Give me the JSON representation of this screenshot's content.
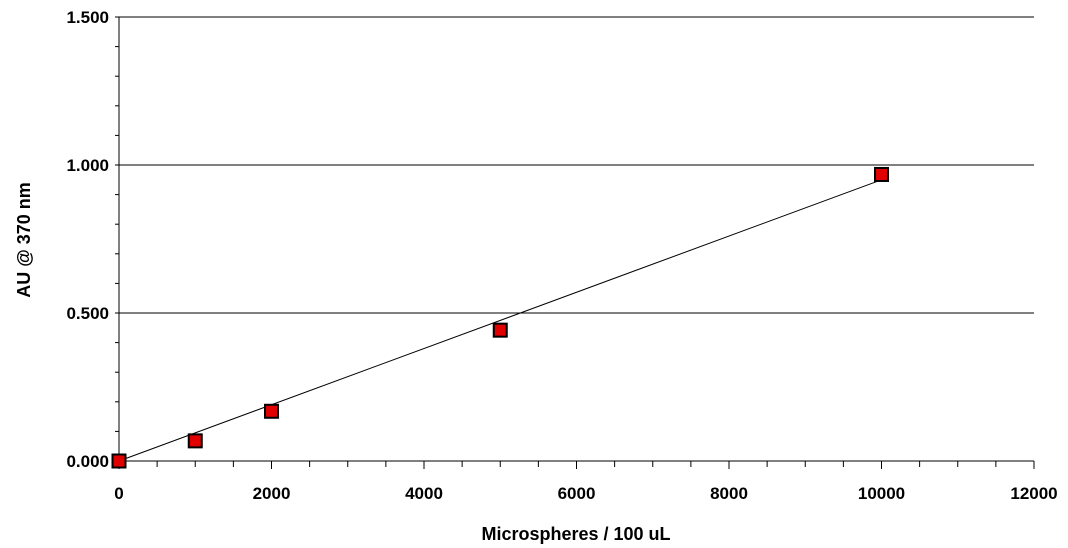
{
  "chart_data": {
    "type": "scatter",
    "title": "",
    "xlabel": "Microspheres / 100 uL",
    "ylabel": "AU @ 370 nm",
    "xlim": [
      0,
      12000
    ],
    "ylim": [
      0,
      1.5
    ],
    "x_ticks": [
      "0",
      "2000",
      "4000",
      "6000",
      "8000",
      "10000",
      "12000"
    ],
    "y_ticks": [
      "0.000",
      "0.500",
      "1.000",
      "1.500"
    ],
    "grid": "horizontal major gridlines",
    "legend": "none",
    "series": [
      {
        "marker": "square",
        "color": "#e00000",
        "x": [
          0,
          1000,
          2000,
          5000,
          10000
        ],
        "y": [
          0.0,
          0.068,
          0.168,
          0.442,
          0.968
        ]
      }
    ],
    "trendline": {
      "type": "linear",
      "x": [
        0,
        10000
      ],
      "y": [
        0.0,
        0.95
      ]
    }
  }
}
